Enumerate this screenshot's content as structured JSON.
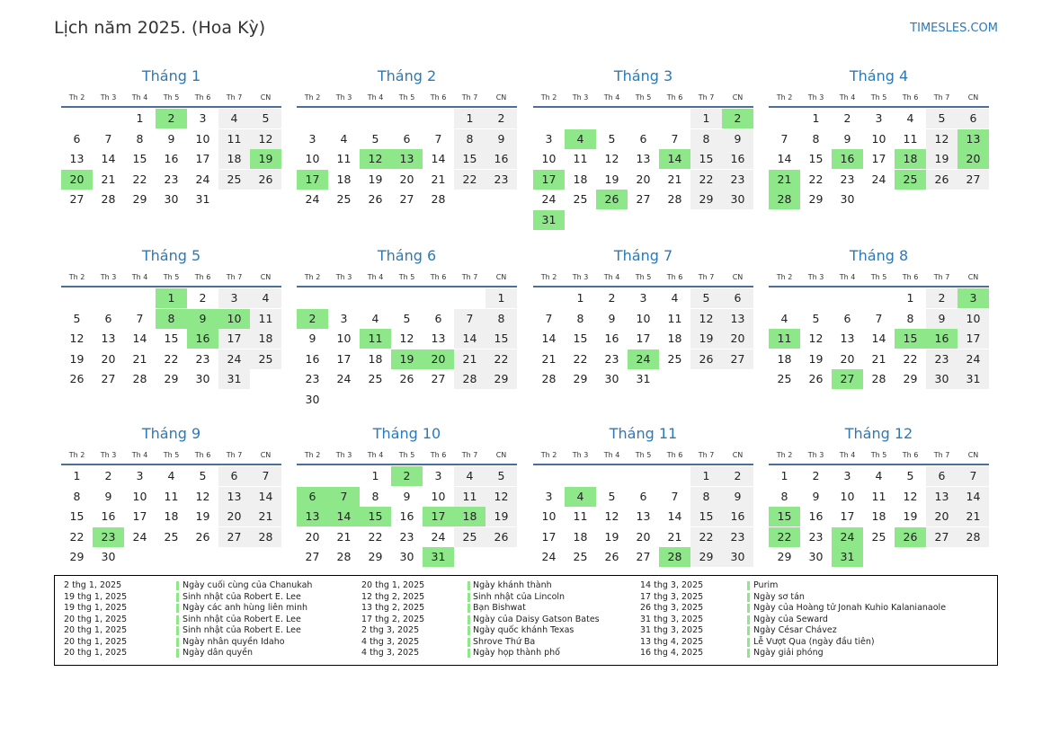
{
  "header": {
    "title": "Lịch năm 2025. (Hoa Kỳ)",
    "site": "TIMESLES.COM"
  },
  "weekdays": [
    "Th 2",
    "Th 3",
    "Th 4",
    "Th 5",
    "Th 6",
    "Th 7",
    "CN"
  ],
  "months": [
    {
      "name": "Tháng 1",
      "highlight": [
        2,
        19,
        20
      ],
      "weeks": [
        [
          null,
          null,
          1,
          2,
          3,
          4,
          5
        ],
        [
          6,
          7,
          8,
          9,
          10,
          11,
          12
        ],
        [
          13,
          14,
          15,
          16,
          17,
          18,
          19
        ],
        [
          20,
          21,
          22,
          23,
          24,
          25,
          26
        ],
        [
          27,
          28,
          29,
          30,
          31
        ]
      ]
    },
    {
      "name": "Tháng 2",
      "highlight": [
        12,
        13,
        17
      ],
      "weeks": [
        [
          null,
          null,
          null,
          null,
          null,
          1,
          2
        ],
        [
          3,
          4,
          5,
          6,
          7,
          8,
          9
        ],
        [
          10,
          11,
          12,
          13,
          14,
          15,
          16
        ],
        [
          17,
          18,
          19,
          20,
          21,
          22,
          23
        ],
        [
          24,
          25,
          26,
          27,
          28
        ]
      ]
    },
    {
      "name": "Tháng 3",
      "highlight": [
        2,
        4,
        14,
        17,
        26,
        31
      ],
      "weeks": [
        [
          null,
          null,
          null,
          null,
          null,
          1,
          2
        ],
        [
          3,
          4,
          5,
          6,
          7,
          8,
          9
        ],
        [
          10,
          11,
          12,
          13,
          14,
          15,
          16
        ],
        [
          17,
          18,
          19,
          20,
          21,
          22,
          23
        ],
        [
          24,
          25,
          26,
          27,
          28,
          29,
          30
        ],
        [
          31
        ]
      ]
    },
    {
      "name": "Tháng 4",
      "highlight": [
        13,
        16,
        18,
        20,
        21,
        25,
        28
      ],
      "weeks": [
        [
          null,
          1,
          2,
          3,
          4,
          5,
          6
        ],
        [
          7,
          8,
          9,
          10,
          11,
          12,
          13
        ],
        [
          14,
          15,
          16,
          17,
          18,
          19,
          20
        ],
        [
          21,
          22,
          23,
          24,
          25,
          26,
          27
        ],
        [
          28,
          29,
          30
        ]
      ]
    },
    {
      "name": "Tháng 5",
      "highlight": [
        1,
        8,
        9,
        10,
        16
      ],
      "weeks": [
        [
          null,
          null,
          null,
          1,
          2,
          3,
          4
        ],
        [
          5,
          6,
          7,
          8,
          9,
          10,
          11
        ],
        [
          12,
          13,
          14,
          15,
          16,
          17,
          18
        ],
        [
          19,
          20,
          21,
          22,
          23,
          24,
          25
        ],
        [
          26,
          27,
          28,
          29,
          30,
          31
        ]
      ]
    },
    {
      "name": "Tháng 6",
      "highlight": [
        2,
        11,
        19,
        20
      ],
      "weeks": [
        [
          null,
          null,
          null,
          null,
          null,
          null,
          1
        ],
        [
          2,
          3,
          4,
          5,
          6,
          7,
          8
        ],
        [
          9,
          10,
          11,
          12,
          13,
          14,
          15
        ],
        [
          16,
          17,
          18,
          19,
          20,
          21,
          22
        ],
        [
          23,
          24,
          25,
          26,
          27,
          28,
          29
        ],
        [
          30
        ]
      ]
    },
    {
      "name": "Tháng 7",
      "highlight": [
        24
      ],
      "weeks": [
        [
          null,
          1,
          2,
          3,
          4,
          5,
          6
        ],
        [
          7,
          8,
          9,
          10,
          11,
          12,
          13
        ],
        [
          14,
          15,
          16,
          17,
          18,
          19,
          20
        ],
        [
          21,
          22,
          23,
          24,
          25,
          26,
          27
        ],
        [
          28,
          29,
          30,
          31
        ]
      ]
    },
    {
      "name": "Tháng 8",
      "highlight": [
        3,
        11,
        15,
        16,
        27
      ],
      "weeks": [
        [
          null,
          null,
          null,
          null,
          1,
          2,
          3
        ],
        [
          4,
          5,
          6,
          7,
          8,
          9,
          10
        ],
        [
          11,
          12,
          13,
          14,
          15,
          16,
          17
        ],
        [
          18,
          19,
          20,
          21,
          22,
          23,
          24
        ],
        [
          25,
          26,
          27,
          28,
          29,
          30,
          31
        ]
      ]
    },
    {
      "name": "Tháng 9",
      "highlight": [
        23
      ],
      "weeks": [
        [
          1,
          2,
          3,
          4,
          5,
          6,
          7
        ],
        [
          8,
          9,
          10,
          11,
          12,
          13,
          14
        ],
        [
          15,
          16,
          17,
          18,
          19,
          20,
          21
        ],
        [
          22,
          23,
          24,
          25,
          26,
          27,
          28
        ],
        [
          29,
          30
        ]
      ]
    },
    {
      "name": "Tháng 10",
      "highlight": [
        2,
        6,
        7,
        13,
        14,
        15,
        17,
        18,
        31
      ],
      "weeks": [
        [
          null,
          null,
          1,
          2,
          3,
          4,
          5
        ],
        [
          6,
          7,
          8,
          9,
          10,
          11,
          12
        ],
        [
          13,
          14,
          15,
          16,
          17,
          18,
          19
        ],
        [
          20,
          21,
          22,
          23,
          24,
          25,
          26
        ],
        [
          27,
          28,
          29,
          30,
          31
        ]
      ]
    },
    {
      "name": "Tháng 11",
      "highlight": [
        4,
        28
      ],
      "weeks": [
        [
          null,
          null,
          null,
          null,
          null,
          1,
          2
        ],
        [
          3,
          4,
          5,
          6,
          7,
          8,
          9
        ],
        [
          10,
          11,
          12,
          13,
          14,
          15,
          16
        ],
        [
          17,
          18,
          19,
          20,
          21,
          22,
          23
        ],
        [
          24,
          25,
          26,
          27,
          28,
          29,
          30
        ]
      ]
    },
    {
      "name": "Tháng 12",
      "highlight": [
        15,
        22,
        24,
        26,
        31
      ],
      "weeks": [
        [
          1,
          2,
          3,
          4,
          5,
          6,
          7
        ],
        [
          8,
          9,
          10,
          11,
          12,
          13,
          14
        ],
        [
          15,
          16,
          17,
          18,
          19,
          20,
          21
        ],
        [
          22,
          23,
          24,
          25,
          26,
          27,
          28
        ],
        [
          29,
          30,
          31
        ]
      ]
    }
  ],
  "holidays": [
    {
      "date": "2 thg 1, 2025",
      "name": "Ngày cuối cùng của Chanukah"
    },
    {
      "date": "19 thg 1, 2025",
      "name": "Sinh nhật của Robert E. Lee"
    },
    {
      "date": "19 thg 1, 2025",
      "name": "Ngày các anh hùng liên minh"
    },
    {
      "date": "20 thg 1, 2025",
      "name": "Sinh nhật của Robert E. Lee"
    },
    {
      "date": "20 thg 1, 2025",
      "name": "Sinh nhật của Robert E. Lee"
    },
    {
      "date": "20 thg 1, 2025",
      "name": "Ngày nhân quyền Idaho"
    },
    {
      "date": "20 thg 1, 2025",
      "name": "Ngày dân quyền"
    },
    {
      "date": "20 thg 1, 2025",
      "name": "Ngày khánh thành"
    },
    {
      "date": "12 thg 2, 2025",
      "name": "Sinh nhật của Lincoln"
    },
    {
      "date": "13 thg 2, 2025",
      "name": "Bạn Bishwat"
    },
    {
      "date": "17 thg 2, 2025",
      "name": "Ngày của Daisy Gatson Bates"
    },
    {
      "date": "2 thg 3, 2025",
      "name": "Ngày quốc khánh Texas"
    },
    {
      "date": "4 thg 3, 2025",
      "name": "Shrove Thứ Ba"
    },
    {
      "date": "4 thg 3, 2025",
      "name": "Ngày họp thành phố"
    },
    {
      "date": "14 thg 3, 2025",
      "name": "Purim"
    },
    {
      "date": "17 thg 3, 2025",
      "name": "Ngày sơ tán"
    },
    {
      "date": "26 thg 3, 2025",
      "name": "Ngày của Hoàng tử Jonah Kuhio Kalanianaole"
    },
    {
      "date": "31 thg 3, 2025",
      "name": "Ngày của Seward"
    },
    {
      "date": "31 thg 3, 2025",
      "name": "Ngày César Chávez"
    },
    {
      "date": "13 thg 4, 2025",
      "name": "Lễ Vượt Qua (ngày đầu tiên)"
    },
    {
      "date": "16 thg 4, 2025",
      "name": "Ngày giải phóng"
    }
  ]
}
